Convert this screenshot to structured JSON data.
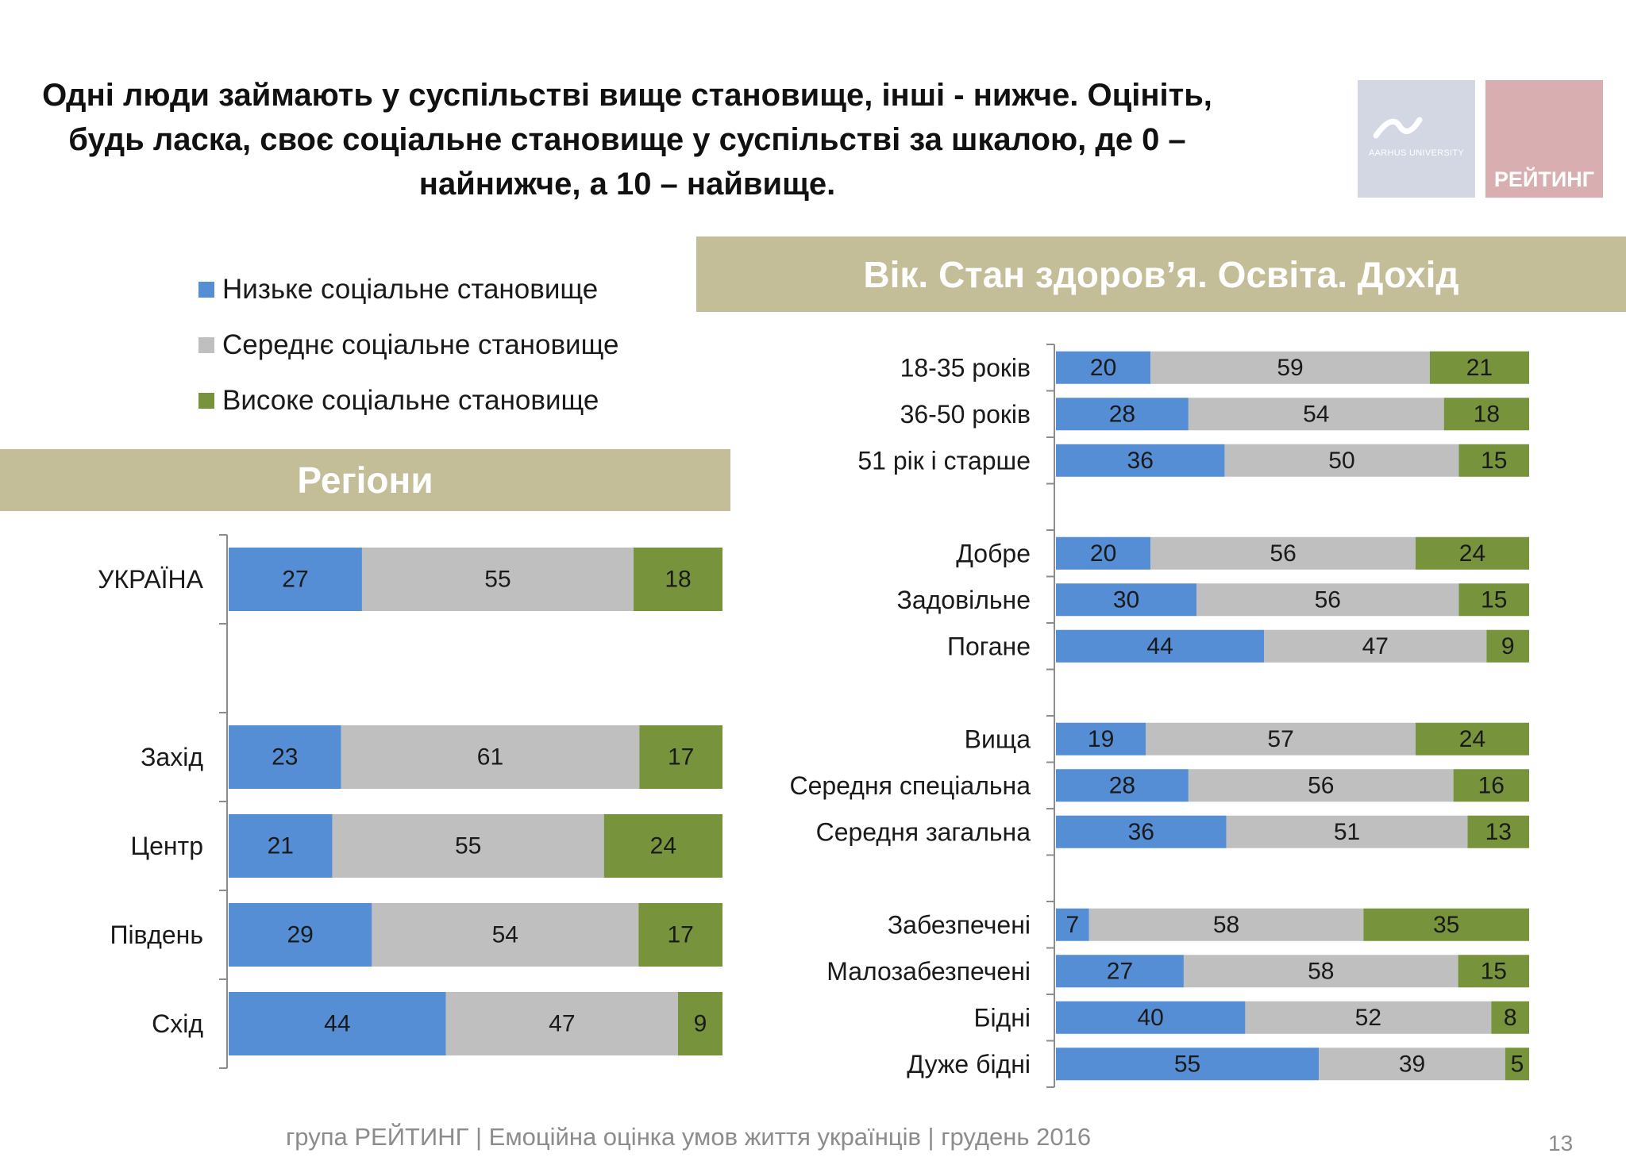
{
  "title": "Одні люди займають у суспільстві вище становище, інші - нижче. Оцініть, будь ласка, своє соціальне становище у суспільстві за шкалою,  де 0 – найнижче, а 10 – найвище.",
  "logos": {
    "aarhus": "AARHUS UNIVERSITY",
    "rating": "РЕЙТИНГ"
  },
  "legend": [
    {
      "label": "Низьке соціальне становище",
      "color": "#558ed5"
    },
    {
      "label": "Середнє соціальне становище",
      "color": "#c0bfbf"
    },
    {
      "label": "Високе соціальне становище",
      "color": "#77933c"
    }
  ],
  "sections": {
    "regions_title": "Регіони",
    "demographics_title": "Вік. Стан здоров’я. Освіта. Дохід"
  },
  "chart_data": [
    {
      "type": "bar",
      "orientation": "horizontal",
      "stacked": true,
      "normalized": true,
      "title": "Регіони",
      "categories": [
        "УКРАЇНА",
        "",
        "Захід",
        "Центр",
        "Південь",
        "Схід"
      ],
      "series": [
        {
          "name": "Низьке соціальне становище",
          "color": "#558ed5",
          "values": [
            27,
            null,
            23,
            21,
            29,
            44
          ]
        },
        {
          "name": "Середнє соціальне становище",
          "color": "#c0bfbf",
          "values": [
            55,
            null,
            61,
            55,
            54,
            47
          ]
        },
        {
          "name": "Високе соціальне становище",
          "color": "#77933c",
          "values": [
            18,
            null,
            17,
            24,
            17,
            9
          ]
        }
      ],
      "data_labels": true,
      "grid": false
    },
    {
      "type": "bar",
      "orientation": "horizontal",
      "stacked": true,
      "normalized": true,
      "title": "Вік. Стан здоров’я. Освіта. Дохід",
      "categories": [
        "18-35 років",
        "36-50 років",
        "51 рік і старше",
        "",
        "Добре",
        "Задовільне",
        "Погане",
        "",
        "Вища",
        "Середня спеціальна",
        "Середня загальна",
        "",
        "Забезпечені",
        "Малозабезпечені",
        "Бідні",
        "Дуже бідні"
      ],
      "series": [
        {
          "name": "Низьке соціальне становище",
          "color": "#558ed5",
          "values": [
            20,
            28,
            36,
            null,
            20,
            30,
            44,
            null,
            19,
            28,
            36,
            null,
            7,
            27,
            40,
            55
          ]
        },
        {
          "name": "Середнє соціальне становище",
          "color": "#c0bfbf",
          "values": [
            59,
            54,
            50,
            null,
            56,
            56,
            47,
            null,
            57,
            56,
            51,
            null,
            58,
            58,
            52,
            39
          ]
        },
        {
          "name": "Високе соціальне становище",
          "color": "#77933c",
          "values": [
            21,
            18,
            15,
            null,
            24,
            15,
            9,
            null,
            24,
            16,
            13,
            null,
            35,
            15,
            8,
            5
          ]
        }
      ],
      "data_labels": true,
      "grid": false
    }
  ],
  "footer": {
    "text": "група РЕЙТИНГ  |  Емоційна оцінка умов життя українців |  грудень 2016",
    "page_number": "13"
  }
}
